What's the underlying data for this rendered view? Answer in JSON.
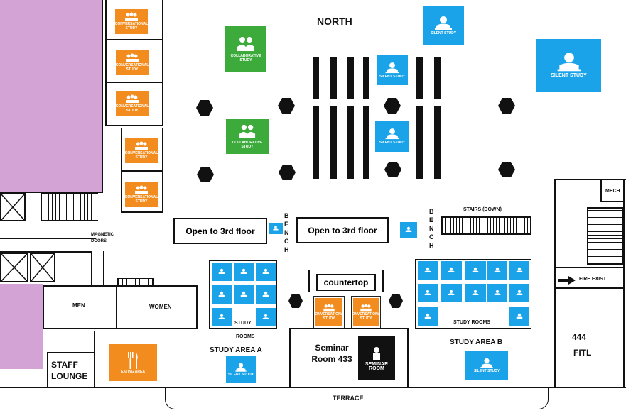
{
  "labels": {
    "north": "NORTH",
    "open_left": "Open to 3rd floor",
    "open_right": "Open to 3rd floor",
    "bench": "BENCH",
    "stairs": "STAIRS (DOWN)",
    "mech": "MECH",
    "fire_exit": "FIRE EXIST",
    "magnetic_doors": "MAGNETIC DOORS",
    "men": "MEN",
    "women": "WOMEN",
    "countertop": "countertop",
    "study": "STUDY",
    "rooms": "ROOMS",
    "study_rooms": "STUDY ROOMS",
    "study_area_a": "STUDY AREA A",
    "study_area_b": "STUDY AREA B",
    "seminar_room": "Seminar Room 433",
    "fitl_number": "444",
    "fitl": "FITL",
    "staff_lounge": "STAFF LOUNGE",
    "terrace": "TERRACE"
  },
  "icon_text": {
    "silent": "SILENT STUDY",
    "collaborative": "COLLABORATIVE STUDY",
    "conversational": "CONVERSATIONAL STUDY",
    "eating": "EATING AREA",
    "seminar": "SEMINAR ROOM"
  },
  "colors": {
    "silent_study": "#1aa3e8",
    "conversational_study": "#f28c1e",
    "collaborative_study": "#3daa3c",
    "eating_area": "#f28c1e",
    "seminar_room": "#111111",
    "restricted_zone": "#d4a3d6"
  }
}
